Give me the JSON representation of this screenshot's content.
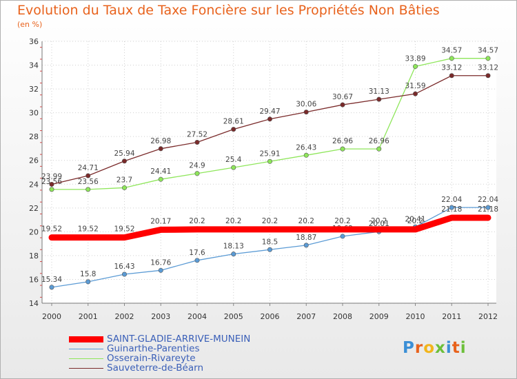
{
  "chart_data": {
    "type": "line",
    "title": "Evolution du Taux de Taxe Foncière sur les Propriétés Non Bâties",
    "unit_label": "(en %)",
    "x": [
      "2000",
      "2001",
      "2002",
      "2003",
      "2004",
      "2005",
      "2006",
      "2007",
      "2008",
      "2009",
      "2010",
      "2011",
      "2012"
    ],
    "ylim": [
      14,
      36
    ],
    "yticks": [
      14,
      16,
      18,
      20,
      22,
      24,
      26,
      28,
      30,
      32,
      34,
      36
    ],
    "grid": true,
    "series": [
      {
        "name": "SAINT-GLADIE-ARRIVE-MUNEIN",
        "color": "#ff0000",
        "values": [
          19.52,
          19.52,
          19.52,
          20.17,
          20.2,
          20.2,
          20.2,
          20.2,
          20.2,
          20.2,
          20.2,
          21.18,
          21.18
        ],
        "labels": [
          "19.52",
          "19.52",
          "19.52",
          "20.17",
          "20.2",
          "20.2",
          "20.2",
          "20.2",
          "20.2",
          "20.2",
          "20.2",
          "21.18",
          "21.18"
        ]
      },
      {
        "name": "Guinarthe-Parenties",
        "color": "#5b9bd5",
        "values": [
          15.34,
          15.8,
          16.43,
          16.76,
          17.6,
          18.13,
          18.5,
          18.87,
          19.62,
          20.01,
          20.41,
          22.04,
          22.04
        ],
        "labels": [
          "15.34",
          "15.8",
          "16.43",
          "16.76",
          "17.6",
          "18.13",
          "18.5",
          "18.87",
          "19.62",
          "20.01",
          "20.41",
          "22.04",
          "22.04"
        ]
      },
      {
        "name": "Osserain-Rivareyte",
        "color": "#8ee65a",
        "values": [
          23.56,
          23.56,
          23.7,
          24.41,
          24.9,
          25.4,
          25.91,
          26.43,
          26.96,
          26.96,
          33.89,
          34.57,
          34.57
        ],
        "labels": [
          "23.56",
          "23.56",
          "23.7",
          "24.41",
          "24.9",
          "25.4",
          "25.91",
          "26.43",
          "26.96",
          "26.96",
          "33.89",
          "34.57",
          "34.57"
        ]
      },
      {
        "name": "Sauveterre-de-Béarn",
        "color": "#7a2a2a",
        "values": [
          23.99,
          24.71,
          25.94,
          26.98,
          27.52,
          28.61,
          29.47,
          30.06,
          30.67,
          31.13,
          31.59,
          33.12,
          33.12
        ],
        "labels": [
          "23.99",
          "24.71",
          "25.94",
          "26.98",
          "27.52",
          "28.61",
          "29.47",
          "30.06",
          "30.67",
          "31.13",
          "31.59",
          "33.12",
          "33.12"
        ]
      }
    ]
  },
  "legend": {
    "items": [
      "SAINT-GLADIE-ARRIVE-MUNEIN",
      "Guinarthe-Parenties",
      "Osserain-Rivareyte",
      "Sauveterre-de-Béarn"
    ]
  },
  "logo": {
    "text": "Proxiti"
  }
}
